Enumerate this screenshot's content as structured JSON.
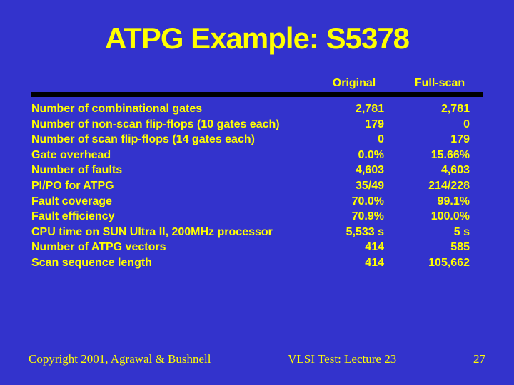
{
  "colors": {
    "background": "#3333cc",
    "text": "#ffff00",
    "bar": "#000000"
  },
  "title": "ATPG Example: S5378",
  "table": {
    "headers": {
      "original": "Original",
      "fullscan": "Full-scan"
    },
    "rows": [
      {
        "label": "Number of combinational gates",
        "original": "2,781",
        "fullscan": "2,781"
      },
      {
        "label": "Number of non-scan flip-flops (10 gates each)",
        "original": "179",
        "fullscan": "0"
      },
      {
        "label": "Number of scan flip-flops (14 gates each)",
        "original": "0",
        "fullscan": "179"
      },
      {
        "label": "Gate overhead",
        "original": "0.0%",
        "fullscan": "15.66%"
      },
      {
        "label": "Number of faults",
        "original": "4,603",
        "fullscan": "4,603"
      },
      {
        "label": "PI/PO for ATPG",
        "original": "35/49",
        "fullscan": "214/228"
      },
      {
        "label": "Fault coverage",
        "original": "70.0%",
        "fullscan": "99.1%"
      },
      {
        "label": "Fault efficiency",
        "original": "70.9%",
        "fullscan": "100.0%"
      },
      {
        "label": "CPU time on SUN Ultra II, 200MHz processor",
        "original": "5,533 s",
        "fullscan": "5 s"
      },
      {
        "label": "Number of ATPG vectors",
        "original": "414",
        "fullscan": "585"
      },
      {
        "label": "Scan sequence length",
        "original": "414",
        "fullscan": "105,662"
      }
    ]
  },
  "footer": {
    "copyright": "Copyright 2001, Agrawal & Bushnell",
    "lecture": "VLSI Test: Lecture 23",
    "page": "27"
  }
}
